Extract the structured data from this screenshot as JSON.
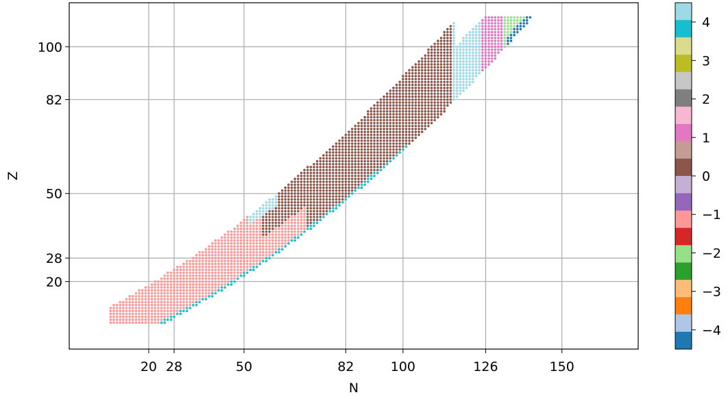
{
  "chart_data": {
    "type": "scatter",
    "xlabel": "N",
    "ylabel": "Z",
    "xlim": [
      -5,
      174
    ],
    "ylim": [
      -3,
      115
    ],
    "xticks": [
      20,
      28,
      50,
      82,
      100,
      126,
      150
    ],
    "yticks": [
      20,
      28,
      50,
      82,
      100
    ],
    "xtick_labels": [
      "20",
      "28",
      "50",
      "82",
      "100",
      "126",
      "150"
    ],
    "ytick_labels": [
      "20",
      "28",
      "50",
      "82",
      "100"
    ],
    "grid": true,
    "colorbar": {
      "ticks": [
        4,
        3,
        2,
        1,
        0,
        -1,
        -2,
        -3,
        -4
      ],
      "tick_labels": [
        "4",
        "3",
        "2",
        "1",
        "0",
        "−1",
        "−2",
        "−3",
        "−4"
      ],
      "colormap": "tab20",
      "colors": [
        "#9edae5",
        "#17becf",
        "#dbdb8d",
        "#bcbd22",
        "#c7c7c7",
        "#7f7f7f",
        "#f7b6d2",
        "#e377c2",
        "#c49c94",
        "#8c564b",
        "#c5b0d5",
        "#9467bd",
        "#ff9896",
        "#d62728",
        "#98df8a",
        "#2ca02c",
        "#ffbb78",
        "#ff7f0e",
        "#aec7e8",
        "#1f77b4"
      ]
    },
    "series": [
      {
        "value": -1,
        "color": "#ff9896",
        "region": "light nuclei, N 8–70"
      },
      {
        "value": 0,
        "color": "#8c564b",
        "region": "N 56–116"
      },
      {
        "value": 4,
        "color": "#9edae5",
        "region": "N 116–128 and isolated near N 52–60"
      },
      {
        "value": 1,
        "color": "#e377c2",
        "region": "N 125–133"
      },
      {
        "value": -2,
        "color": "#98df8a",
        "region": "N 130–163"
      },
      {
        "value": -4,
        "color": "#1f77b4",
        "region": "neutron-rich edge, N 133–157"
      },
      {
        "value": 3.5,
        "color": "#17becf",
        "region": "neutron-rich edge, N 15–100"
      }
    ]
  }
}
